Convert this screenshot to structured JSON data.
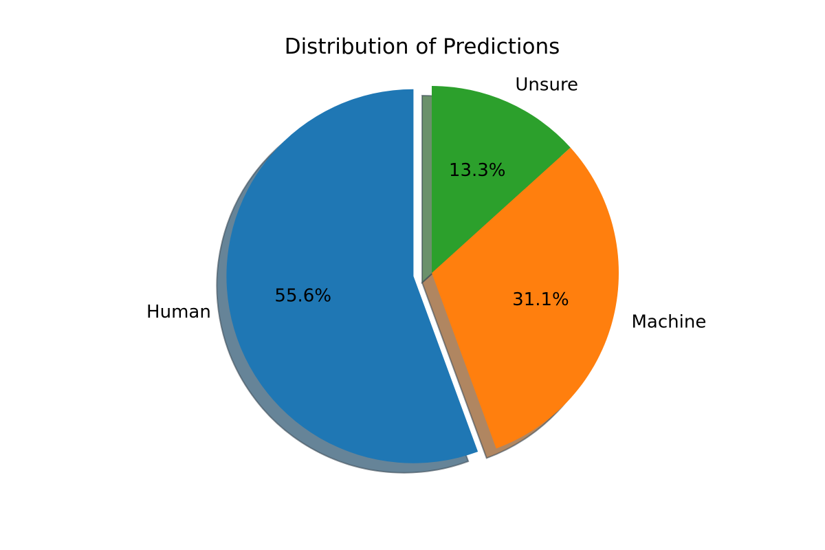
{
  "chart_data": {
    "type": "pie",
    "title": "Distribution of Predictions",
    "slices": [
      {
        "label": "Human",
        "value": 55.6,
        "pct_label": "55.6%",
        "color": "#1f77b4",
        "exploded": true
      },
      {
        "label": "Machine",
        "value": 31.1,
        "pct_label": "31.1%",
        "color": "#ff7f0e",
        "exploded": false
      },
      {
        "label": "Unsure",
        "value": 13.3,
        "pct_label": "13.3%",
        "color": "#2ca02c",
        "exploded": false
      }
    ],
    "start_angle_deg": 90,
    "direction": "counterclockwise",
    "shadow": true
  }
}
